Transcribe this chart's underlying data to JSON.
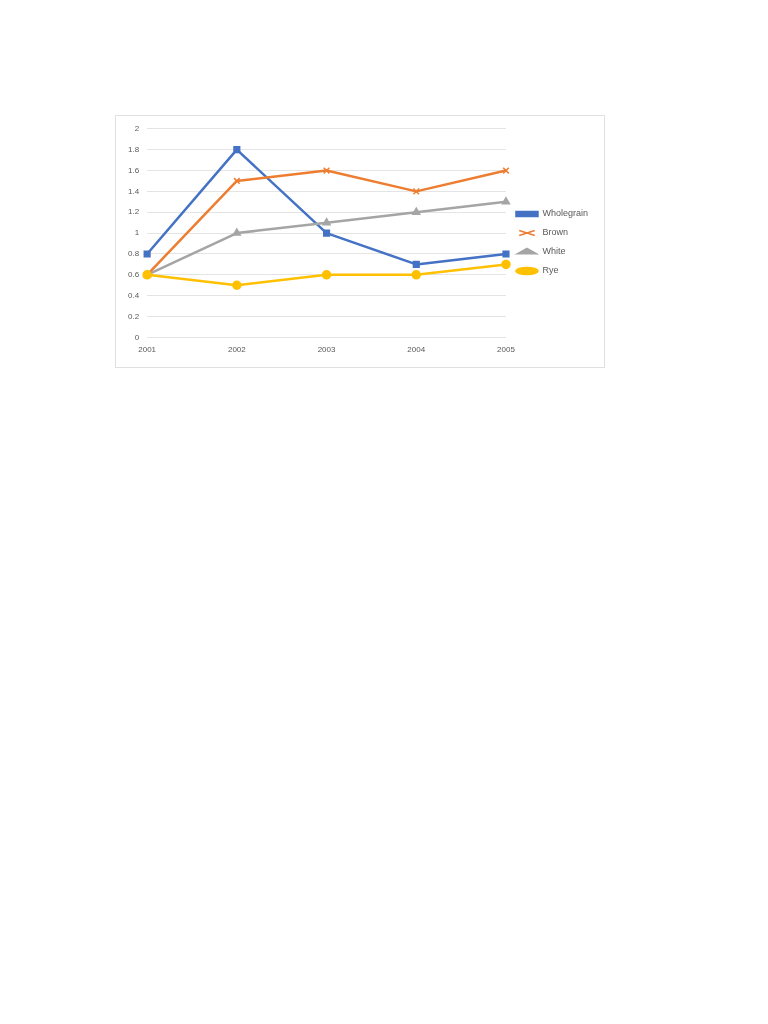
{
  "chart_data": {
    "type": "line",
    "categories": [
      "2001",
      "2002",
      "2003",
      "2004",
      "2005"
    ],
    "series": [
      {
        "name": "Wholegrain",
        "color": "#4472c4",
        "marker": "square",
        "values": [
          0.8,
          1.8,
          1.0,
          0.7,
          0.8
        ]
      },
      {
        "name": "Brown",
        "color": "#ed7d31",
        "marker": "cross",
        "values": [
          0.6,
          1.5,
          1.6,
          1.4,
          1.6
        ]
      },
      {
        "name": "White",
        "color": "#a5a5a5",
        "marker": "triangle",
        "values": [
          0.6,
          1.0,
          1.1,
          1.2,
          1.3
        ]
      },
      {
        "name": "Rye",
        "color": "#ffc000",
        "marker": "circle",
        "values": [
          0.6,
          0.5,
          0.6,
          0.6,
          0.7
        ]
      }
    ],
    "ylim": [
      0,
      2
    ],
    "yticks": [
      0,
      0.2,
      0.4,
      0.6,
      0.8,
      1,
      1.2,
      1.4,
      1.6,
      1.8,
      2
    ],
    "grid": "y",
    "legend": "right",
    "line_style": "solid"
  }
}
